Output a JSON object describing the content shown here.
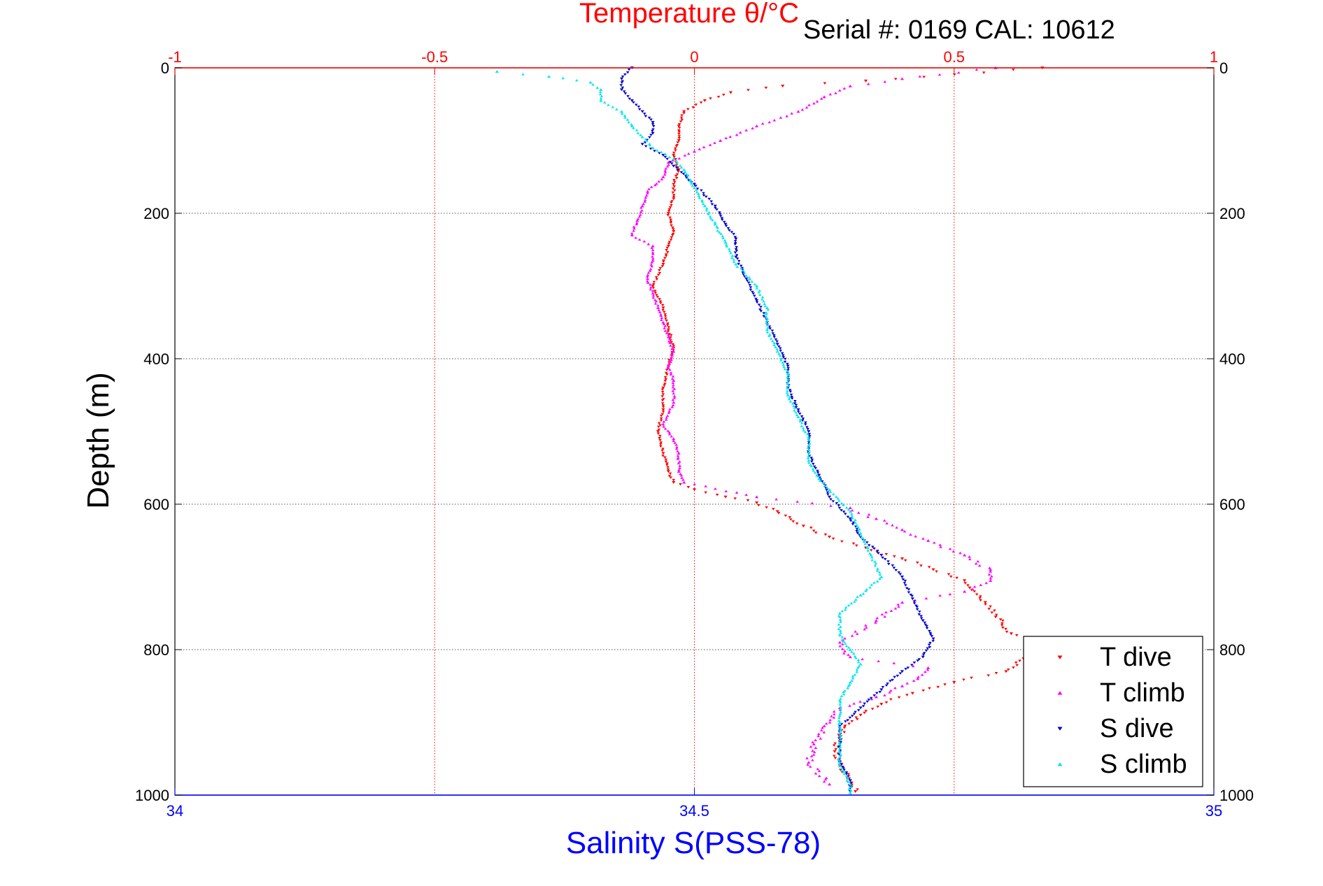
{
  "chart_data": {
    "type": "scatter",
    "title": "Temperature θ/°C",
    "subtitle": "Serial #: 0169 CAL: 10612",
    "ylabel": "Depth (m)",
    "xlabel_bottom": "Salinity S(PSS-78)",
    "xlabel_top": "Temperature θ/°C",
    "y_axis": {
      "range": [
        0,
        1000
      ],
      "reversed": true,
      "ticks": [
        "0",
        "200",
        "400",
        "600",
        "800",
        "1000"
      ],
      "grid": true
    },
    "x_bottom": {
      "range": [
        34,
        35
      ],
      "ticks": [
        "34",
        "34.5",
        "35"
      ],
      "color": "#0000ff"
    },
    "x_top": {
      "range": [
        -1,
        1
      ],
      "ticks": [
        "-1",
        "-0.5",
        "0",
        "0.5",
        "1"
      ],
      "color": "#ff0000",
      "grid": true
    },
    "legend": {
      "position": "bottom-right",
      "entries": [
        "T dive",
        "T climb",
        "S dive",
        "S climb"
      ]
    },
    "series": [
      {
        "name": "T dive",
        "axis": "top",
        "color": "#ff0000",
        "marker": "triangle-down",
        "points": [
          [
            0.67,
            0
          ],
          [
            0.33,
            18
          ],
          [
            0.17,
            25
          ],
          [
            0.07,
            34
          ],
          [
            0.02,
            45
          ],
          [
            -0.02,
            60
          ],
          [
            -0.03,
            80
          ],
          [
            -0.03,
            100
          ],
          [
            -0.04,
            120
          ],
          [
            -0.03,
            140
          ],
          [
            -0.04,
            160
          ],
          [
            -0.04,
            180
          ],
          [
            -0.05,
            200
          ],
          [
            -0.04,
            225
          ],
          [
            -0.05,
            245
          ],
          [
            -0.06,
            270
          ],
          [
            -0.08,
            300
          ],
          [
            -0.06,
            330
          ],
          [
            -0.05,
            360
          ],
          [
            -0.04,
            385
          ],
          [
            -0.05,
            410
          ],
          [
            -0.06,
            440
          ],
          [
            -0.06,
            470
          ],
          [
            -0.07,
            500
          ],
          [
            -0.06,
            530
          ],
          [
            -0.05,
            555
          ],
          [
            -0.04,
            570
          ],
          [
            0.0,
            580
          ],
          [
            0.06,
            590
          ],
          [
            0.12,
            598
          ],
          [
            0.16,
            610
          ],
          [
            0.21,
            630
          ],
          [
            0.26,
            645
          ],
          [
            0.33,
            660
          ],
          [
            0.4,
            675
          ],
          [
            0.46,
            690
          ],
          [
            0.52,
            705
          ],
          [
            0.53,
            715
          ],
          [
            0.56,
            735
          ],
          [
            0.58,
            755
          ],
          [
            0.61,
            778
          ],
          [
            0.67,
            790
          ],
          [
            0.6,
            830
          ],
          [
            0.5,
            845
          ],
          [
            0.42,
            860
          ],
          [
            0.36,
            875
          ],
          [
            0.32,
            890
          ],
          [
            0.29,
            905
          ],
          [
            0.28,
            920
          ],
          [
            0.27,
            940
          ],
          [
            0.28,
            960
          ],
          [
            0.3,
            980
          ],
          [
            0.31,
            995
          ]
        ]
      },
      {
        "name": "T climb",
        "axis": "top",
        "color": "#ff00ff",
        "marker": "triangle-up",
        "points": [
          [
            0.58,
            0
          ],
          [
            0.4,
            15
          ],
          [
            0.3,
            25
          ],
          [
            0.25,
            40
          ],
          [
            0.2,
            60
          ],
          [
            0.12,
            80
          ],
          [
            0.05,
            100
          ],
          [
            0.0,
            115
          ],
          [
            -0.05,
            130
          ],
          [
            -0.06,
            150
          ],
          [
            -0.09,
            170
          ],
          [
            -0.1,
            190
          ],
          [
            -0.11,
            210
          ],
          [
            -0.12,
            230
          ],
          [
            -0.08,
            245
          ],
          [
            -0.08,
            265
          ],
          [
            -0.09,
            290
          ],
          [
            -0.08,
            310
          ],
          [
            -0.07,
            330
          ],
          [
            -0.06,
            350
          ],
          [
            -0.05,
            370
          ],
          [
            -0.04,
            390
          ],
          [
            -0.05,
            410
          ],
          [
            -0.04,
            430
          ],
          [
            -0.04,
            460
          ],
          [
            -0.06,
            490
          ],
          [
            -0.04,
            510
          ],
          [
            -0.03,
            530
          ],
          [
            -0.03,
            555
          ],
          [
            -0.02,
            570
          ],
          [
            0.12,
            590
          ],
          [
            0.3,
            605
          ],
          [
            0.35,
            620
          ],
          [
            0.4,
            635
          ],
          [
            0.45,
            650
          ],
          [
            0.52,
            670
          ],
          [
            0.57,
            690
          ],
          [
            0.57,
            705
          ],
          [
            0.52,
            720
          ],
          [
            0.4,
            735
          ],
          [
            0.35,
            760
          ],
          [
            0.28,
            790
          ],
          [
            0.3,
            810
          ],
          [
            0.45,
            825
          ],
          [
            0.43,
            840
          ],
          [
            0.4,
            850
          ],
          [
            0.35,
            865
          ],
          [
            0.28,
            880
          ],
          [
            0.25,
            905
          ],
          [
            0.23,
            930
          ],
          [
            0.22,
            955
          ],
          [
            0.26,
            985
          ]
        ]
      },
      {
        "name": "S dive",
        "axis": "bottom",
        "color": "#0000cc",
        "marker": "triangle-down",
        "points": [
          [
            34.44,
            0
          ],
          [
            34.43,
            15
          ],
          [
            34.43,
            30
          ],
          [
            34.44,
            45
          ],
          [
            34.45,
            60
          ],
          [
            34.46,
            75
          ],
          [
            34.46,
            90
          ],
          [
            34.45,
            105
          ],
          [
            34.47,
            120
          ],
          [
            34.48,
            135
          ],
          [
            34.5,
            160
          ],
          [
            34.52,
            190
          ],
          [
            34.53,
            215
          ],
          [
            34.54,
            235
          ],
          [
            34.54,
            260
          ],
          [
            34.55,
            290
          ],
          [
            34.56,
            320
          ],
          [
            34.57,
            350
          ],
          [
            34.58,
            380
          ],
          [
            34.59,
            410
          ],
          [
            34.59,
            440
          ],
          [
            34.6,
            470
          ],
          [
            34.61,
            500
          ],
          [
            34.61,
            530
          ],
          [
            34.62,
            560
          ],
          [
            34.63,
            590
          ],
          [
            34.65,
            620
          ],
          [
            34.66,
            645
          ],
          [
            34.68,
            670
          ],
          [
            34.7,
            700
          ],
          [
            34.71,
            730
          ],
          [
            34.72,
            760
          ],
          [
            34.73,
            785
          ],
          [
            34.72,
            810
          ],
          [
            34.7,
            830
          ],
          [
            34.68,
            855
          ],
          [
            34.66,
            880
          ],
          [
            34.64,
            905
          ],
          [
            34.64,
            930
          ],
          [
            34.64,
            955
          ],
          [
            34.65,
            980
          ],
          [
            34.65,
            995
          ]
        ]
      },
      {
        "name": "S climb",
        "axis": "bottom",
        "color": "#00e5ee",
        "marker": "triangle-up",
        "points": [
          [
            34.31,
            5
          ],
          [
            34.36,
            12
          ],
          [
            34.4,
            20
          ],
          [
            34.41,
            30
          ],
          [
            34.41,
            45
          ],
          [
            34.43,
            60
          ],
          [
            34.44,
            80
          ],
          [
            34.45,
            95
          ],
          [
            34.46,
            110
          ],
          [
            34.48,
            125
          ],
          [
            34.49,
            140
          ],
          [
            34.5,
            165
          ],
          [
            34.51,
            190
          ],
          [
            34.52,
            215
          ],
          [
            34.53,
            240
          ],
          [
            34.54,
            270
          ],
          [
            34.56,
            300
          ],
          [
            34.57,
            330
          ],
          [
            34.57,
            360
          ],
          [
            34.58,
            390
          ],
          [
            34.59,
            420
          ],
          [
            34.59,
            450
          ],
          [
            34.6,
            480
          ],
          [
            34.61,
            510
          ],
          [
            34.61,
            540
          ],
          [
            34.62,
            565
          ],
          [
            34.63,
            580
          ],
          [
            34.65,
            610
          ],
          [
            34.66,
            640
          ],
          [
            34.67,
            670
          ],
          [
            34.68,
            700
          ],
          [
            34.66,
            725
          ],
          [
            34.64,
            750
          ],
          [
            34.64,
            780
          ],
          [
            34.65,
            800
          ],
          [
            34.66,
            820
          ],
          [
            34.65,
            845
          ],
          [
            34.64,
            870
          ],
          [
            34.64,
            900
          ],
          [
            34.64,
            930
          ],
          [
            34.64,
            960
          ],
          [
            34.65,
            985
          ],
          [
            34.65,
            997
          ]
        ]
      }
    ]
  }
}
